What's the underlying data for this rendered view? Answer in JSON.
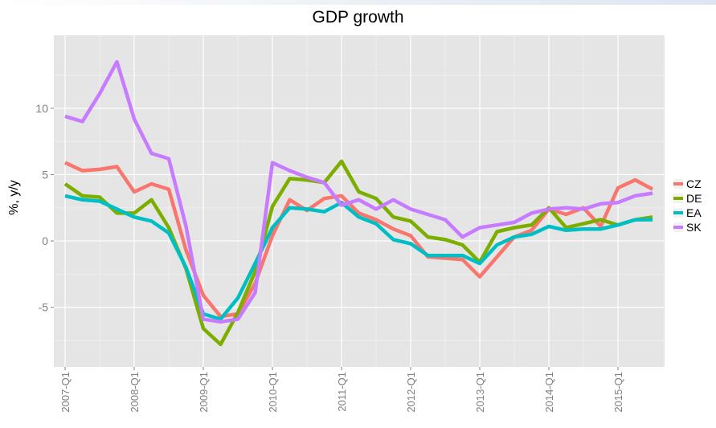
{
  "chart_data": {
    "type": "line",
    "title": "GDP growth",
    "ylabel": "%, y/y",
    "xlabel": "",
    "ylim": [
      -9.5,
      15.5
    ],
    "yticks": [
      -5,
      0,
      5,
      10
    ],
    "xtick_labels": [
      "2007-Q1",
      "2008-Q1",
      "2009-Q1",
      "2010-Q1",
      "2011-Q1",
      "2012-Q1",
      "2013-Q1",
      "2014-Q1",
      "2015-Q1"
    ],
    "x": [
      "2007-Q1",
      "2007-Q2",
      "2007-Q3",
      "2007-Q4",
      "2008-Q1",
      "2008-Q2",
      "2008-Q3",
      "2008-Q4",
      "2009-Q1",
      "2009-Q2",
      "2009-Q3",
      "2009-Q4",
      "2010-Q1",
      "2010-Q2",
      "2010-Q3",
      "2010-Q4",
      "2011-Q1",
      "2011-Q2",
      "2011-Q3",
      "2011-Q4",
      "2012-Q1",
      "2012-Q2",
      "2012-Q3",
      "2012-Q4",
      "2013-Q1",
      "2013-Q2",
      "2013-Q3",
      "2013-Q4",
      "2014-Q1",
      "2014-Q2",
      "2014-Q3",
      "2014-Q4",
      "2015-Q1",
      "2015-Q2",
      "2015-Q3"
    ],
    "grid": true,
    "legend_position": "right",
    "background": "#e5e5e5",
    "series": [
      {
        "name": "CZ",
        "color": "#f8766d",
        "values": [
          5.9,
          5.3,
          5.4,
          5.6,
          3.7,
          4.3,
          3.9,
          -0.7,
          -4.1,
          -5.7,
          -5.5,
          -3.2,
          0.4,
          3.1,
          2.3,
          3.2,
          3.4,
          2.1,
          1.6,
          0.9,
          0.4,
          -1.2,
          -1.3,
          -1.4,
          -2.7,
          -1.2,
          0.3,
          0.8,
          2.4,
          2.0,
          2.5,
          1.1,
          4.0,
          4.6,
          3.9
        ]
      },
      {
        "name": "DE",
        "color": "#7cae00",
        "values": [
          4.3,
          3.4,
          3.3,
          2.1,
          2.1,
          3.1,
          1.0,
          -2.1,
          -6.6,
          -7.8,
          -5.4,
          -2.3,
          2.6,
          4.7,
          4.6,
          4.4,
          6.0,
          3.7,
          3.2,
          1.8,
          1.5,
          0.3,
          0.1,
          -0.3,
          -1.6,
          0.7,
          1.0,
          1.2,
          2.5,
          1.0,
          1.3,
          1.6,
          1.2,
          1.6,
          1.8
        ]
      },
      {
        "name": "EA",
        "color": "#00bfc4",
        "values": [
          3.4,
          3.1,
          3.0,
          2.4,
          1.8,
          1.5,
          0.6,
          -2.0,
          -5.5,
          -5.9,
          -4.3,
          -1.7,
          1.0,
          2.5,
          2.4,
          2.2,
          2.9,
          1.8,
          1.3,
          0.1,
          -0.2,
          -1.1,
          -1.1,
          -1.1,
          -1.7,
          -0.3,
          0.3,
          0.5,
          1.1,
          0.8,
          0.9,
          0.9,
          1.2,
          1.6,
          1.6
        ]
      },
      {
        "name": "SK",
        "color": "#c77cff",
        "values": [
          9.4,
          9.0,
          11.1,
          13.5,
          9.2,
          6.6,
          6.2,
          1.1,
          -5.9,
          -6.1,
          -5.9,
          -3.9,
          5.9,
          5.3,
          4.8,
          4.4,
          2.7,
          3.1,
          2.4,
          3.1,
          2.4,
          2.0,
          1.6,
          0.3,
          1.0,
          1.2,
          1.4,
          2.1,
          2.4,
          2.5,
          2.4,
          2.8,
          2.9,
          3.4,
          3.6
        ]
      }
    ]
  }
}
